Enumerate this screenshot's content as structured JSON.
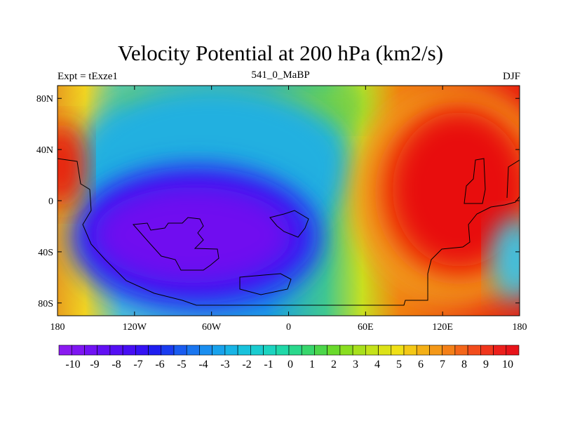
{
  "chart_data": {
    "type": "heatmap",
    "title": "Velocity Potential at 200 hPa (km2/s)",
    "left_string": "Expt = tExze1",
    "center_string": "541_0_MaBP",
    "right_string": "DJF",
    "x_ticks": [
      "180",
      "120W",
      "60W",
      "0",
      "60E",
      "120E",
      "180"
    ],
    "y_ticks": [
      "80N",
      "40N",
      "0",
      "40S",
      "80S"
    ],
    "x_range": [
      -180,
      180
    ],
    "y_range": [
      -90,
      90
    ],
    "colorbar_labels": [
      "-10",
      "-9",
      "-8",
      "-7",
      "-6",
      "-5",
      "-4",
      "-3",
      "-2",
      "-1",
      "0",
      "1",
      "2",
      "3",
      "4",
      "5",
      "6",
      "7",
      "8",
      "9",
      "10"
    ],
    "field_centers": [
      {
        "name": "negative_center",
        "lon": -95,
        "lat": -25,
        "value": -10
      },
      {
        "name": "positive_center",
        "lon": 120,
        "lat": 10,
        "value": 10
      }
    ]
  }
}
